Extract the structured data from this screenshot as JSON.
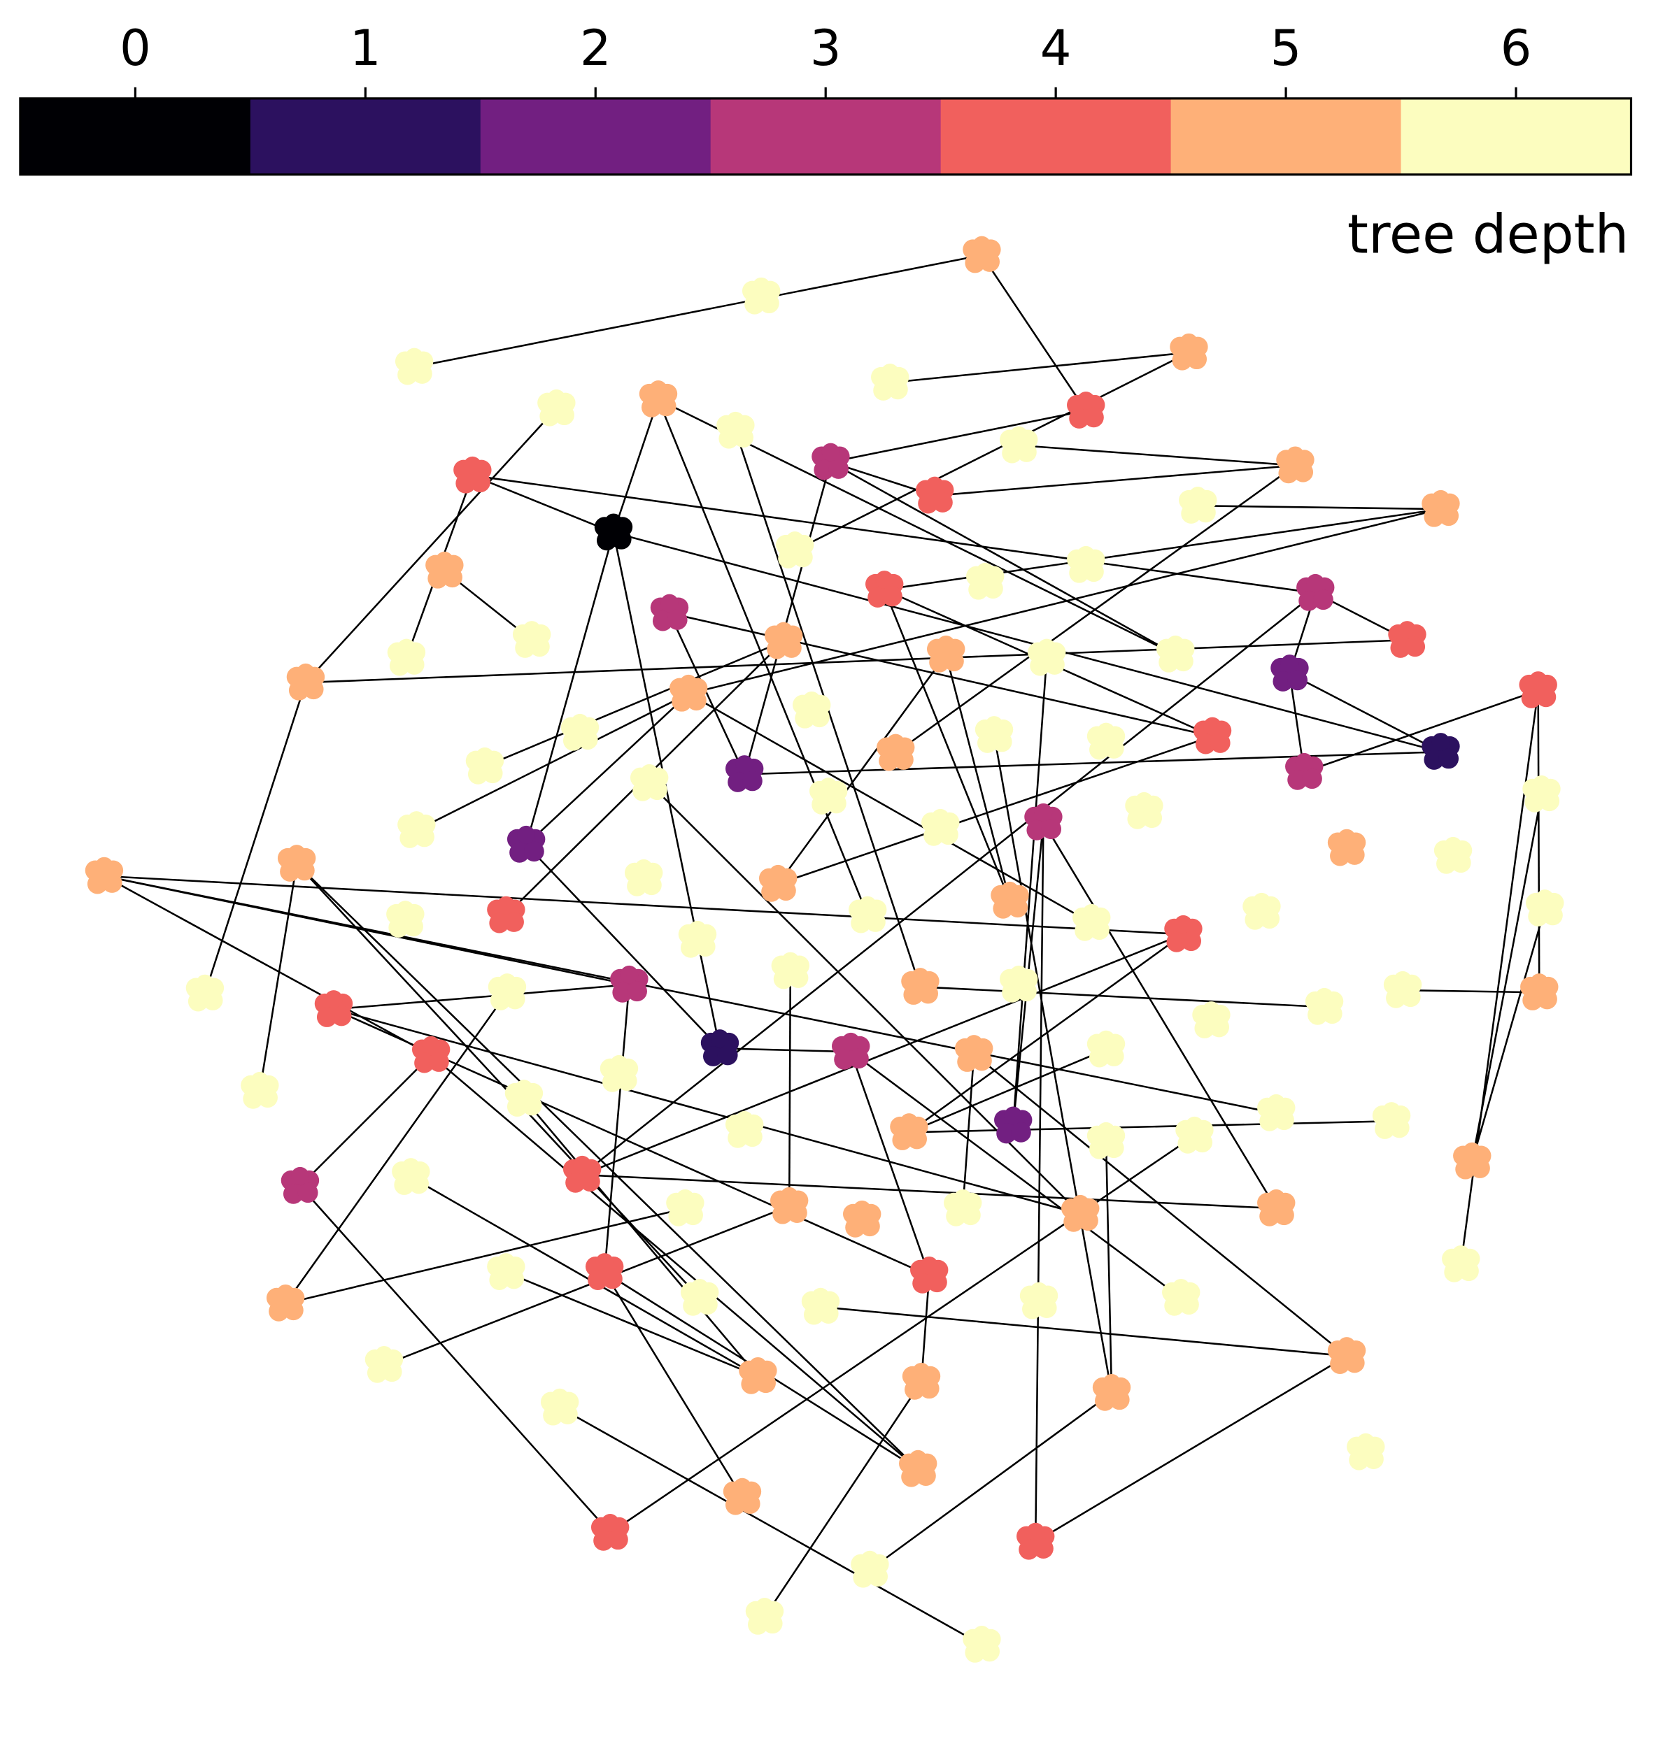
{
  "chart_data": {
    "type": "scatter",
    "colorbar": {
      "label": "tree depth",
      "ticks": [
        0,
        1,
        2,
        3,
        4,
        5,
        6
      ],
      "colors": [
        "#000004",
        "#2c115f",
        "#721f81",
        "#b73779",
        "#f1605d",
        "#feb078",
        "#fcfdbf"
      ]
    },
    "edge_color": "#000000",
    "depths": [
      0,
      1,
      1,
      2,
      2,
      2,
      2,
      3,
      3,
      3,
      3,
      3,
      3,
      3,
      3,
      4,
      4,
      4,
      4,
      4,
      4,
      4,
      4,
      4,
      4,
      4,
      4,
      4,
      4,
      4,
      4,
      5,
      5,
      5,
      5,
      5,
      5,
      5,
      5,
      5,
      5,
      5,
      5,
      5,
      5,
      5,
      5,
      5,
      5,
      5,
      5,
      5,
      5,
      5,
      5,
      5,
      5,
      5,
      5,
      5,
      5,
      5,
      5,
      6,
      6,
      6,
      6,
      6,
      6,
      6,
      6,
      6,
      6,
      6,
      6,
      6,
      6,
      6,
      6,
      6,
      6,
      6,
      6,
      6,
      6,
      6,
      6,
      6,
      6,
      6,
      6,
      6,
      6,
      6,
      6,
      6,
      6,
      6,
      6,
      6,
      6,
      6,
      6,
      6,
      6,
      6,
      6,
      6,
      6,
      6,
      6,
      6,
      6,
      6,
      6,
      6,
      6,
      6,
      6,
      6,
      6,
      6,
      6,
      6,
      6,
      6,
      6
    ]
  }
}
